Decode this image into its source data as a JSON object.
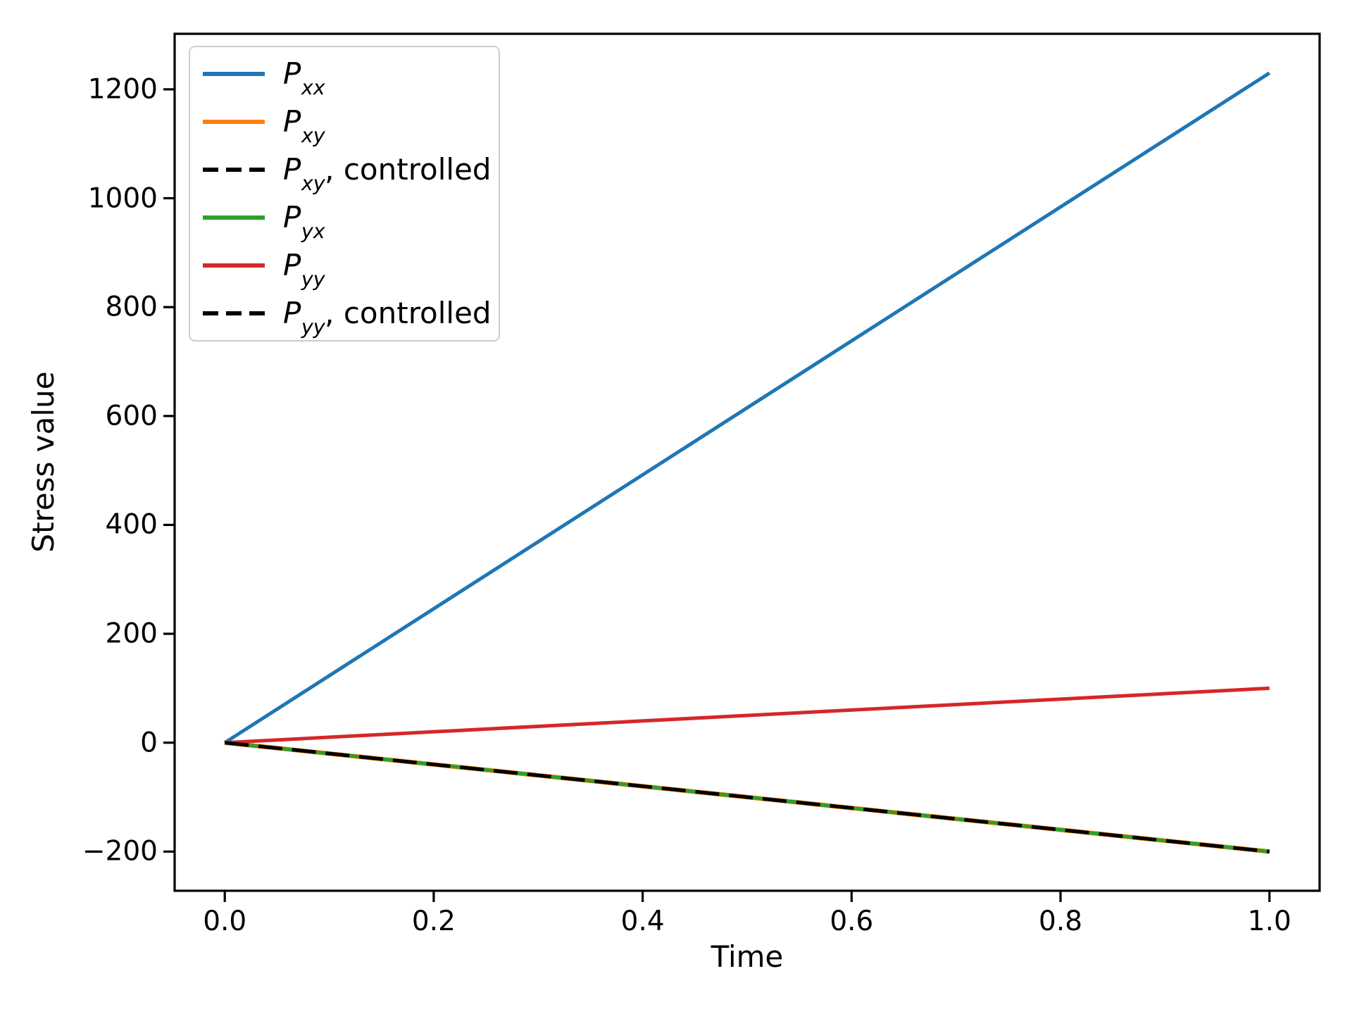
{
  "figure": {
    "background": "#ffffff",
    "axis_color": "#000000"
  },
  "chart_data": {
    "type": "line",
    "title": "",
    "xlabel": "Time",
    "ylabel": "Stress value",
    "xlim": [
      -0.048,
      1.048
    ],
    "ylim": [
      -272,
      1302
    ],
    "grid": false,
    "legend_position": "upper-left",
    "legend_border_color": "#cccccc",
    "xticks": {
      "values": [
        0.0,
        0.2,
        0.4,
        0.6,
        0.8,
        1.0
      ],
      "labels": [
        "0.0",
        "0.2",
        "0.4",
        "0.6",
        "0.8",
        "1.0"
      ]
    },
    "yticks": {
      "values": [
        -200,
        0,
        200,
        400,
        600,
        800,
        1000,
        1200
      ],
      "labels": [
        "−200",
        "0",
        "200",
        "400",
        "600",
        "800",
        "1000",
        "1200"
      ]
    },
    "series": [
      {
        "name": "P_xx",
        "label": {
          "main": "P",
          "sub": "xx",
          "suffix": ""
        },
        "color": "#1f77b4",
        "linestyle": "solid",
        "x": [
          0,
          1
        ],
        "y": [
          0,
          1230
        ]
      },
      {
        "name": "P_xy",
        "label": {
          "main": "P",
          "sub": "xy",
          "suffix": ""
        },
        "color": "#ff7f0e",
        "linestyle": "solid",
        "x": [
          0,
          1
        ],
        "y": [
          0,
          -200
        ]
      },
      {
        "name": "P_xy_controlled",
        "label": {
          "main": "P",
          "sub": "xy",
          "suffix": ", controlled"
        },
        "color": "#000000",
        "linestyle": "dashed",
        "x": [
          0,
          1
        ],
        "y": [
          0,
          -200
        ]
      },
      {
        "name": "P_yx",
        "label": {
          "main": "P",
          "sub": "yx",
          "suffix": ""
        },
        "color": "#2ca02c",
        "linestyle": "solid",
        "x": [
          0,
          1
        ],
        "y": [
          0,
          -200
        ]
      },
      {
        "name": "P_yy",
        "label": {
          "main": "P",
          "sub": "yy",
          "suffix": ""
        },
        "color": "#d62728",
        "linestyle": "solid",
        "x": [
          0,
          1
        ],
        "y": [
          0,
          100
        ]
      },
      {
        "name": "P_yy_controlled",
        "label": {
          "main": "P",
          "sub": "yy",
          "suffix": ", controlled"
        },
        "color": "#000000",
        "linestyle": "dashed",
        "x": [
          0,
          1
        ],
        "y": [
          0,
          -200
        ]
      }
    ]
  }
}
